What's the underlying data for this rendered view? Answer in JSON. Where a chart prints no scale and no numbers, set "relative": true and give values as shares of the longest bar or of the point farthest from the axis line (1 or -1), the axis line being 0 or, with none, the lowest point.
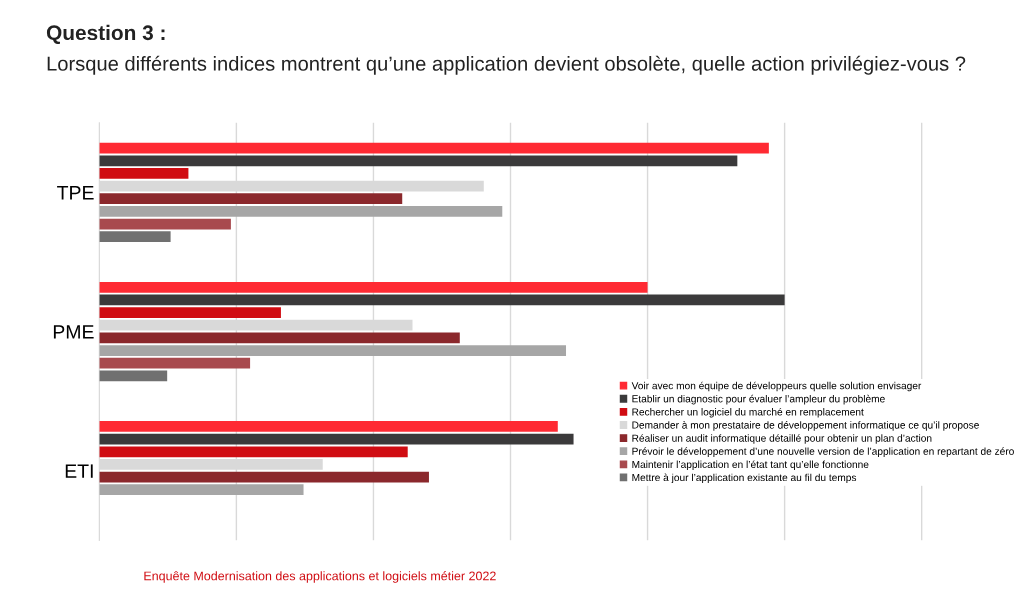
{
  "chart_data": {
    "type": "bar",
    "orientation": "horizontal",
    "relative": true,
    "grid": "x",
    "legend": "bottom right",
    "title": "Question 3 :",
    "subtitle": "Lorsque différents indices montrent qu’une application devient obsolète, quelle action privilégiez-vous ?",
    "categories": [
      "TPE",
      "PME",
      "ETI"
    ],
    "series": [
      {
        "name": "Voir avec mon équipe de développeurs quelle solution envisager",
        "color": "#ff2a33",
        "values": [
          0.977,
          0.8,
          0.669
        ]
      },
      {
        "name": "Etablir un diagnostic pour évaluer l’ampleur du problème",
        "color": "#3b3a3b",
        "values": [
          0.931,
          1,
          0.692
        ]
      },
      {
        "name": "Rechercher un logiciel du marché en remplacement",
        "color": "#d00c12",
        "values": [
          0.13,
          0.265,
          0.45
        ]
      },
      {
        "name": "Demander à mon prestataire de développement informatique ce qu’il propose",
        "color": "#d9d9d9",
        "values": [
          0.561,
          0.457,
          0.326
        ]
      },
      {
        "name": "Réaliser un audit informatique détaillé pour obtenir un plan d’action",
        "color": "#8b282c",
        "values": [
          0.442,
          0.526,
          0.481
        ]
      },
      {
        "name": "Prévoir le développement d’une nouvelle version de l’application en repartant de zéro",
        "color": "#a6a6a6",
        "values": [
          0.588,
          0.681,
          0.298
        ]
      },
      {
        "name": "Maintenir l’application en l’état tant qu’elle fonctionne",
        "color": "#a84a4e",
        "values": [
          0.192,
          0.22,
          null
        ]
      },
      {
        "name": "Mettre à jour l’application existante au fil du temps",
        "color": "#707070",
        "values": [
          0.104,
          0.099,
          null
        ]
      }
    ],
    "annotations": [
      "Enquête Modernisation des applications et logiciels métier 2022"
    ]
  }
}
